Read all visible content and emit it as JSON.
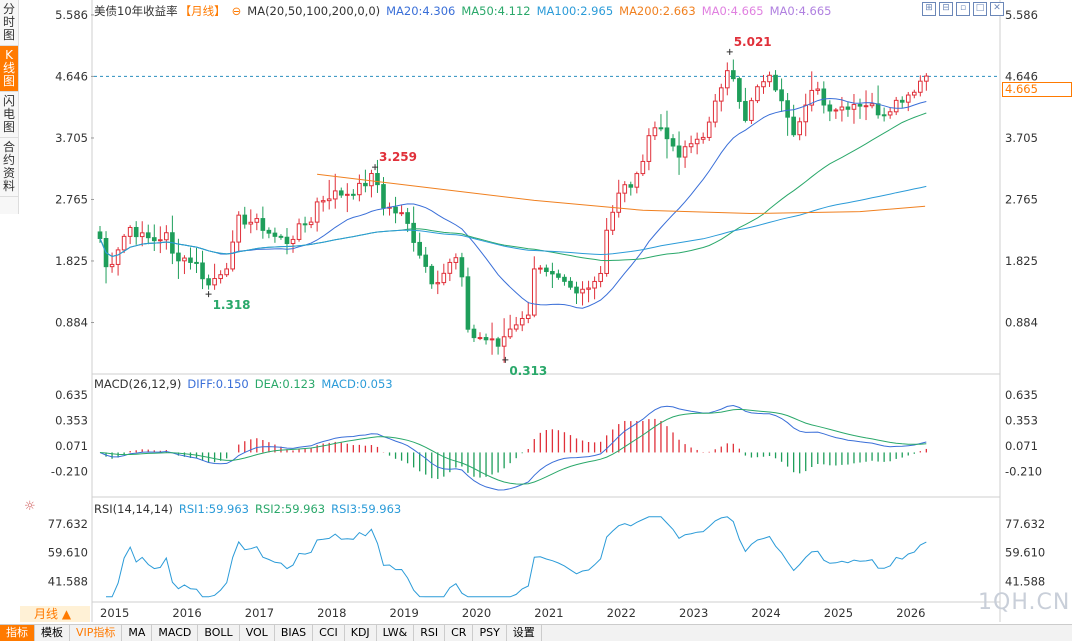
{
  "side_tabs": [
    "分时图",
    "K线图",
    "闪电图",
    "合约资料"
  ],
  "side_active": 1,
  "title": "美债10年收益率",
  "period_tag": "【月线】",
  "main_legend": [
    {
      "text": "MA(20,50,100,200,0,0)",
      "color": "#333333"
    },
    {
      "text": "MA20:4.306",
      "color": "#3a6fd8"
    },
    {
      "text": "MA50:4.112",
      "color": "#2aa86a"
    },
    {
      "text": "MA100:2.965",
      "color": "#2b9bd8"
    },
    {
      "text": "MA200:2.663",
      "color": "#f08020"
    },
    {
      "text": "MA0:4.665",
      "color": "#e080e0"
    },
    {
      "text": "MA0:4.665",
      "color": "#b080e0"
    }
  ],
  "macd_legend": [
    {
      "text": "MACD(26,12,9)",
      "color": "#333333"
    },
    {
      "text": "DIFF:0.150",
      "color": "#3a6fd8"
    },
    {
      "text": "DEA:0.123",
      "color": "#2aa86a"
    },
    {
      "text": "MACD:0.053",
      "color": "#2b9bd8"
    }
  ],
  "rsi_legend": [
    {
      "text": "RSI(14,14,14)",
      "color": "#333333"
    },
    {
      "text": "RSI1:59.963",
      "color": "#2b9bd8"
    },
    {
      "text": "RSI2:59.963",
      "color": "#2aa86a"
    },
    {
      "text": "RSI3:59.963",
      "color": "#2b9bd8"
    }
  ],
  "current_price": "4.665",
  "period_button": "月线 ▲",
  "bottom_tabs": [
    "指标",
    "模板",
    "VIP指标",
    "MA",
    "MACD",
    "BOLL",
    "VOL",
    "BIAS",
    "CCI",
    "KDJ",
    "LW&",
    "RSI",
    "CR",
    "PSY",
    "设置"
  ],
  "bottom_selected": 0,
  "watermark": "1QH.CN",
  "toolbar_icons": [
    "expand-icon",
    "grid-icon",
    "minus-icon",
    "maximize-icon",
    "close-icon"
  ],
  "chart_data": {
    "type": "candlestick",
    "title": "美债10年收益率",
    "interval": "monthly",
    "x_axis": {
      "labels": [
        "2015",
        "2016",
        "2017",
        "2018",
        "2019",
        "2020",
        "2021",
        "2022",
        "2023",
        "2024",
        "2025",
        "2026"
      ]
    },
    "price_axis": {
      "ticks": [
        "5.586",
        "4.646",
        "3.705",
        "2.765",
        "1.825",
        "0.884"
      ],
      "ylim": [
        0.25,
        5.6
      ]
    },
    "annotations": [
      {
        "label": "5.021",
        "x": 2023.7,
        "value": 5.021,
        "kind": "high",
        "color": "#e0303a"
      },
      {
        "label": "3.259",
        "x": 2018.8,
        "value": 3.259,
        "kind": "high",
        "color": "#e0303a"
      },
      {
        "label": "1.318",
        "x": 2016.5,
        "value": 1.318,
        "kind": "low",
        "color": "#2aa86a"
      },
      {
        "label": "0.313",
        "x": 2020.6,
        "value": 0.313,
        "kind": "low",
        "color": "#2aa86a"
      }
    ],
    "reference_line": {
      "value": 4.646
    },
    "price_path": [
      [
        2015.0,
        2.17
      ],
      [
        2015.1,
        1.64
      ],
      [
        2015.2,
        1.93
      ],
      [
        2015.4,
        2.35
      ],
      [
        2015.6,
        2.18
      ],
      [
        2015.8,
        2.14
      ],
      [
        2015.9,
        2.27
      ],
      [
        2016.0,
        1.92
      ],
      [
        2016.3,
        1.83
      ],
      [
        2016.5,
        1.45
      ],
      [
        2016.6,
        1.58
      ],
      [
        2016.8,
        1.84
      ],
      [
        2016.9,
        2.45
      ],
      [
        2017.0,
        2.45
      ],
      [
        2017.2,
        2.39
      ],
      [
        2017.4,
        2.2
      ],
      [
        2017.6,
        2.12
      ],
      [
        2017.8,
        2.38
      ],
      [
        2017.9,
        2.41
      ],
      [
        2018.0,
        2.72
      ],
      [
        2018.2,
        2.85
      ],
      [
        2018.4,
        2.86
      ],
      [
        2018.6,
        2.95
      ],
      [
        2018.8,
        3.15
      ],
      [
        2018.9,
        2.69
      ],
      [
        2019.0,
        2.63
      ],
      [
        2019.2,
        2.5
      ],
      [
        2019.4,
        2.0
      ],
      [
        2019.6,
        1.5
      ],
      [
        2019.8,
        1.7
      ],
      [
        2019.9,
        1.92
      ],
      [
        2020.0,
        1.51
      ],
      [
        2020.1,
        0.67
      ],
      [
        2020.3,
        0.65
      ],
      [
        2020.5,
        0.53
      ],
      [
        2020.7,
        0.88
      ],
      [
        2020.9,
        0.92
      ],
      [
        2021.0,
        1.74
      ],
      [
        2021.2,
        1.58
      ],
      [
        2021.4,
        1.47
      ],
      [
        2021.6,
        1.3
      ],
      [
        2021.8,
        1.55
      ],
      [
        2021.9,
        1.52
      ],
      [
        2022.0,
        2.34
      ],
      [
        2022.2,
        2.93
      ],
      [
        2022.4,
        3.02
      ],
      [
        2022.6,
        3.83
      ],
      [
        2022.8,
        3.88
      ],
      [
        2022.9,
        3.52
      ],
      [
        2023.0,
        3.42
      ],
      [
        2023.2,
        3.64
      ],
      [
        2023.4,
        3.84
      ],
      [
        2023.6,
        4.57
      ],
      [
        2023.7,
        4.93
      ],
      [
        2023.9,
        3.88
      ],
      [
        2024.0,
        4.25
      ],
      [
        2024.2,
        4.68
      ],
      [
        2024.4,
        4.4
      ],
      [
        2024.6,
        3.78
      ],
      [
        2024.8,
        4.28
      ],
      [
        2024.9,
        4.57
      ],
      [
        2025.0,
        4.21
      ],
      [
        2025.2,
        4.16
      ],
      [
        2025.4,
        4.24
      ],
      [
        2025.6,
        4.23
      ],
      [
        2025.8,
        4.08
      ],
      [
        2025.9,
        4.17
      ],
      [
        2026.0,
        4.26
      ],
      [
        2026.2,
        4.4
      ],
      [
        2026.4,
        4.665
      ]
    ]
  },
  "macd_axis": {
    "ticks": [
      "0.635",
      "0.353",
      "0.071",
      "-0.210"
    ]
  },
  "rsi_axis": {
    "ticks": [
      "77.632",
      "59.610",
      "41.588"
    ]
  }
}
